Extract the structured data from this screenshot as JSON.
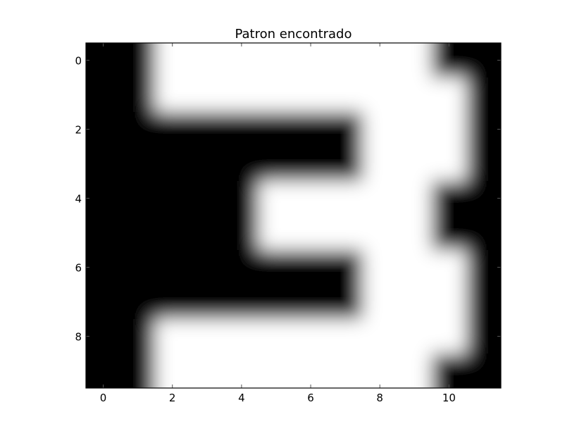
{
  "chart_data": {
    "type": "heatmap",
    "title": "Patron encontrado",
    "colormap": "gray",
    "interpolation": "smooth",
    "colors": {
      "low": "#000000",
      "high": "#ffffff",
      "frame": "#000000"
    },
    "xlim": [
      -0.5,
      11.5
    ],
    "ylim": [
      9.5,
      -0.5
    ],
    "xticks": [
      0,
      2,
      4,
      6,
      8,
      10
    ],
    "yticks": [
      0,
      2,
      4,
      6,
      8
    ],
    "xtick_labels": [
      "0",
      "2",
      "4",
      "6",
      "8",
      "10"
    ],
    "ytick_labels": [
      "0",
      "2",
      "4",
      "6",
      "8"
    ],
    "xlabel": "",
    "ylabel": "",
    "grid": false,
    "values": [
      [
        0,
        0,
        1,
        1,
        1,
        1,
        1,
        1,
        1,
        1,
        0,
        0
      ],
      [
        0,
        0,
        1,
        1,
        1,
        1,
        1,
        1,
        1,
        1,
        1,
        0
      ],
      [
        0,
        0,
        0,
        0,
        0,
        0,
        0,
        0,
        1,
        1,
        1,
        0
      ],
      [
        0,
        0,
        0,
        0,
        0,
        0,
        0,
        0,
        1,
        1,
        1,
        0
      ],
      [
        0,
        0,
        0,
        0,
        0,
        1,
        1,
        1,
        1,
        1,
        0,
        0
      ],
      [
        0,
        0,
        0,
        0,
        0,
        1,
        1,
        1,
        1,
        1,
        0,
        0
      ],
      [
        0,
        0,
        0,
        0,
        0,
        0,
        0,
        0,
        1,
        1,
        1,
        0
      ],
      [
        0,
        0,
        0,
        0,
        0,
        0,
        0,
        0,
        1,
        1,
        1,
        0
      ],
      [
        0,
        0,
        1,
        1,
        1,
        1,
        1,
        1,
        1,
        1,
        1,
        0
      ],
      [
        0,
        0,
        1,
        1,
        1,
        1,
        1,
        1,
        1,
        1,
        0,
        0
      ]
    ]
  }
}
